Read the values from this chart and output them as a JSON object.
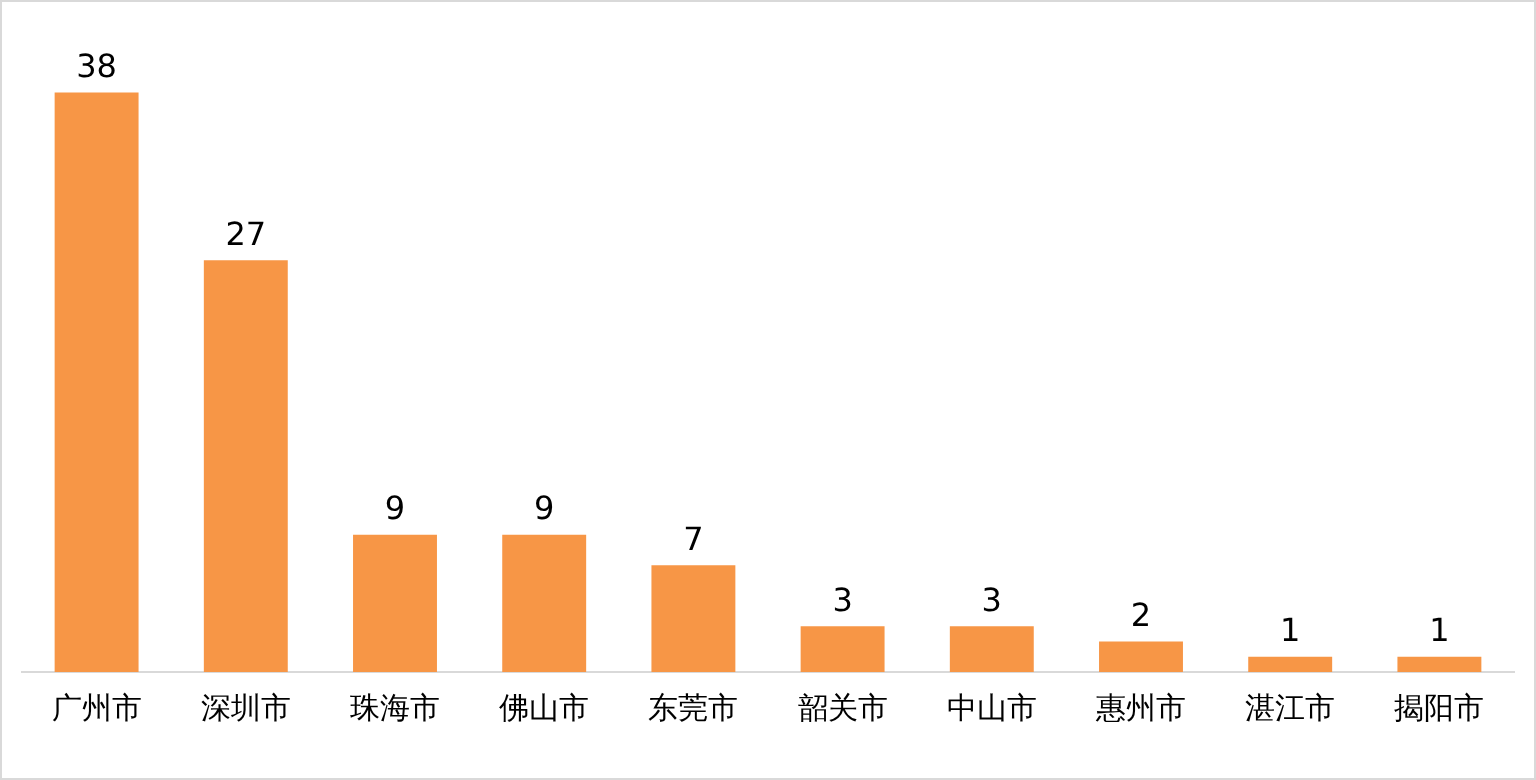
{
  "chart_data": {
    "type": "bar",
    "categories": [
      "广州市",
      "深圳市",
      "珠海市",
      "佛山市",
      "东莞市",
      "韶关市",
      "中山市",
      "惠州市",
      "湛江市",
      "揭阳市"
    ],
    "values": [
      38,
      27,
      9,
      9,
      7,
      3,
      3,
      2,
      1,
      1
    ],
    "color": "#f79646",
    "data_labels": true,
    "grid": false,
    "legend": false,
    "tick_labels": "x"
  }
}
